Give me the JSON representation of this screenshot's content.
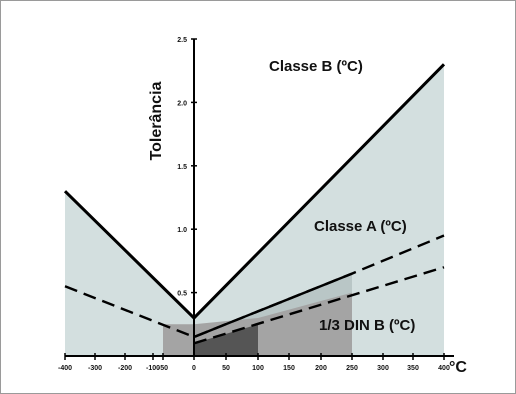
{
  "chart_data": {
    "type": "line",
    "ylabel": "Tolerância",
    "xunit": "°C",
    "xlim": [
      -400,
      400
    ],
    "ylim": [
      0,
      2.5
    ],
    "x_ticks": [
      "-400",
      "-300",
      "-200",
      "-100",
      "-50",
      "0",
      "50",
      "100",
      "150",
      "200",
      "250",
      "300",
      "350",
      "400"
    ],
    "y_ticks": [
      {
        "value": 0.5,
        "label": "0.5"
      },
      {
        "value": 1.0,
        "label": "1.0"
      },
      {
        "value": 1.5,
        "label": "1.5"
      },
      {
        "value": 2.0,
        "label": "2.0"
      },
      {
        "value": 2.5,
        "label": "2.5"
      }
    ],
    "annotations": {
      "classe_b": "Classe B (ºC)",
      "classe_a": "Classe A (ºC)",
      "din": "1/3 DIN B (ºC)"
    },
    "series": [
      {
        "key": "classe_b",
        "style": "solid",
        "x": [
          "-400",
          "0",
          "400"
        ],
        "values": [
          1.3,
          0.3,
          2.3
        ]
      },
      {
        "key": "classe_a_solid",
        "style": "solid",
        "x": [
          "0",
          "250"
        ],
        "values": [
          0.15,
          0.65
        ]
      },
      {
        "key": "classe_a_dashed",
        "style": "dashed",
        "x": [
          "-400",
          "0",
          "250",
          "400"
        ],
        "values": [
          0.55,
          0.15,
          0.65,
          0.95
        ]
      },
      {
        "key": "din_b",
        "style": "dashed",
        "x": [
          "0",
          "400"
        ],
        "values": [
          0.1,
          0.7
        ]
      }
    ],
    "regions": [
      {
        "name": "classe-b-region",
        "x_from": "-400",
        "x_to": "400",
        "fill": "#d3dfdf"
      },
      {
        "name": "classe-a-region",
        "x_from": "250",
        "x_to": "250",
        "fill": "#b9c6c6"
      },
      {
        "name": "din-region",
        "x_from": "-50",
        "x_to": "250",
        "fill": "#a4a4a4"
      },
      {
        "name": "core-region",
        "x_from": "0",
        "x_to": "100",
        "fill": "#555555"
      }
    ]
  }
}
